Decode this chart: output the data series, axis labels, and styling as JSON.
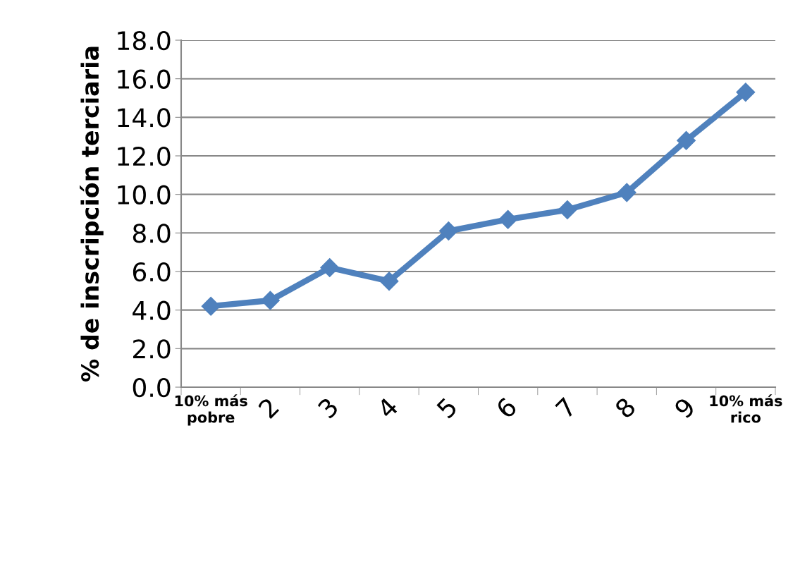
{
  "chart_data": {
    "type": "line",
    "ylabel": "% de inscripción terciaria",
    "categories": [
      "10% más\npobre",
      "2",
      "3",
      "4",
      "5",
      "6",
      "7",
      "8",
      "9",
      "10% más\nrico"
    ],
    "series": [
      {
        "color": "#4f81bd",
        "values": [
          4.2,
          4.5,
          6.2,
          5.5,
          8.1,
          8.7,
          9.2,
          10.1,
          12.8,
          15.3
        ]
      }
    ],
    "ylim": [
      0,
      18
    ],
    "yticks": [
      {
        "value": 0,
        "label": "0.0"
      },
      {
        "value": 2,
        "label": "2.0"
      },
      {
        "value": 4,
        "label": "4.0"
      },
      {
        "value": 6,
        "label": "6.0"
      },
      {
        "value": 8,
        "label": "8.0"
      },
      {
        "value": 10,
        "label": "10.0"
      },
      {
        "value": 12,
        "label": "12.0"
      },
      {
        "value": 14,
        "label": "14.0"
      },
      {
        "value": 16,
        "label": "16.0"
      },
      {
        "value": 18,
        "label": "18.0"
      }
    ],
    "grid": "y",
    "marker": "diamond",
    "line_style": "solid",
    "legend": false
  }
}
